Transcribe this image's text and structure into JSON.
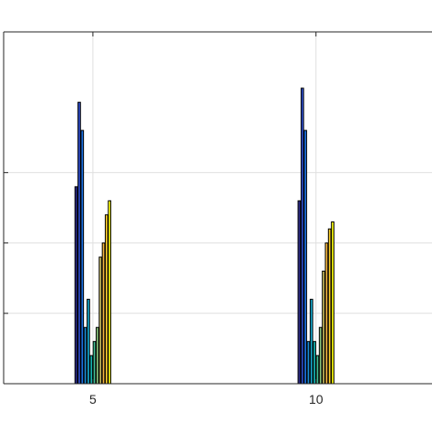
{
  "chart_data": {
    "type": "bar",
    "grid": true,
    "xlim": [
      3,
      12.6
    ],
    "ylim": [
      0,
      25
    ],
    "xticks": [
      5,
      10
    ],
    "yticks": [
      5,
      10,
      15
    ],
    "x_tick_labels": [
      "5",
      "10"
    ],
    "groups": [
      {
        "x": 5,
        "values": [
          14,
          20,
          18,
          4,
          6,
          2,
          3,
          4,
          9,
          10,
          12,
          13
        ]
      },
      {
        "x": 10,
        "values": [
          13,
          21,
          18,
          3,
          6,
          3,
          2,
          4,
          8,
          10,
          11,
          11.5
        ]
      }
    ],
    "series_colors": [
      "#2B2A86",
      "#2D4CC8",
      "#1A6FDF",
      "#1A8AD0",
      "#16A5C9",
      "#16B3B0",
      "#43BC92",
      "#86C07A",
      "#C2B65B",
      "#F3B541",
      "#F8CB2C",
      "#F8F90F"
    ]
  }
}
